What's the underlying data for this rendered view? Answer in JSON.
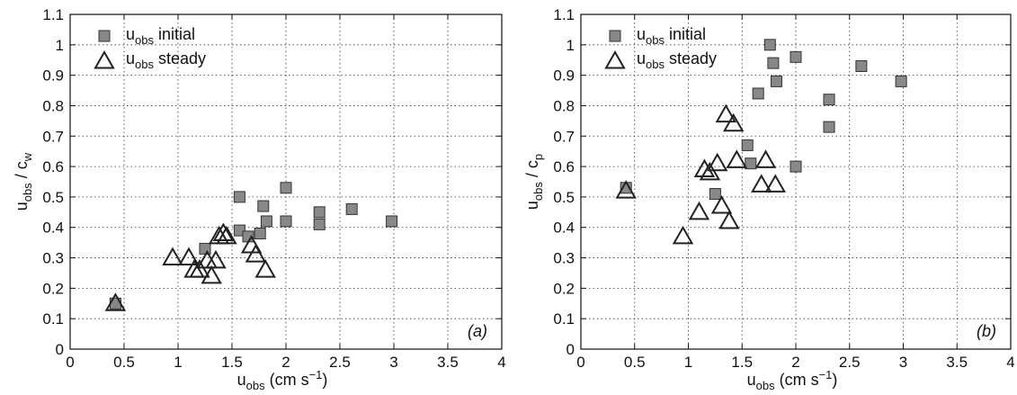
{
  "chart_data": [
    {
      "type": "scatter",
      "panel_label": "(a)",
      "xlabel": {
        "main": "u",
        "sub": "obs",
        "unit": " (cm s",
        "unit_exp": "−1",
        "close": ")"
      },
      "ylabel": {
        "num": "u",
        "num_sub": "obs",
        "sep": " / ",
        "den": "c",
        "den_sub": "w"
      },
      "xlim": [
        0,
        4
      ],
      "ylim": [
        0,
        1.1
      ],
      "xticks": [
        "0",
        "0.5",
        "1",
        "1.5",
        "2",
        "2.5",
        "3",
        "3.5",
        "4"
      ],
      "yticks": [
        "0",
        "0.1",
        "0.2",
        "0.3",
        "0.4",
        "0.5",
        "0.6",
        "0.7",
        "0.8",
        "0.9",
        "1",
        "1.1"
      ],
      "grid": true,
      "legend_position": "top-left",
      "series": [
        {
          "name": "u obs initial",
          "label": {
            "main": "u",
            "sub": "obs",
            "rest": " initial"
          },
          "marker": "square",
          "color": "#888888",
          "points": [
            [
              0.42,
              0.15
            ],
            [
              1.25,
              0.33
            ],
            [
              1.57,
              0.5
            ],
            [
              1.57,
              0.39
            ],
            [
              1.65,
              0.37
            ],
            [
              1.76,
              0.38
            ],
            [
              1.79,
              0.47
            ],
            [
              1.82,
              0.42
            ],
            [
              2.0,
              0.53
            ],
            [
              2.0,
              0.42
            ],
            [
              2.31,
              0.45
            ],
            [
              2.31,
              0.41
            ],
            [
              2.61,
              0.46
            ],
            [
              2.98,
              0.42
            ]
          ]
        },
        {
          "name": "u obs steady",
          "label": {
            "main": "u",
            "sub": "obs",
            "rest": " steady"
          },
          "marker": "triangle",
          "color": "#222222",
          "points": [
            [
              0.42,
              0.15
            ],
            [
              0.95,
              0.3
            ],
            [
              1.1,
              0.3
            ],
            [
              1.15,
              0.26
            ],
            [
              1.2,
              0.26
            ],
            [
              1.27,
              0.29
            ],
            [
              1.31,
              0.24
            ],
            [
              1.35,
              0.29
            ],
            [
              1.38,
              0.37
            ],
            [
              1.42,
              0.38
            ],
            [
              1.45,
              0.37
            ],
            [
              1.68,
              0.34
            ],
            [
              1.72,
              0.31
            ],
            [
              1.81,
              0.26
            ]
          ]
        }
      ]
    },
    {
      "type": "scatter",
      "panel_label": "(b)",
      "xlabel": {
        "main": "u",
        "sub": "obs",
        "unit": " (cm s",
        "unit_exp": "−1",
        "close": ")"
      },
      "ylabel": {
        "num": "u",
        "num_sub": "obs",
        "sep": " / ",
        "den": "c",
        "den_sub": "p"
      },
      "xlim": [
        0,
        4
      ],
      "ylim": [
        0,
        1.1
      ],
      "xticks": [
        "0",
        "0.5",
        "1",
        "1.5",
        "2",
        "2.5",
        "3",
        "3.5",
        "4"
      ],
      "yticks": [
        "0",
        "0.1",
        "0.2",
        "0.3",
        "0.4",
        "0.5",
        "0.6",
        "0.7",
        "0.8",
        "0.9",
        "1",
        "1.1"
      ],
      "grid": true,
      "legend_position": "top-left",
      "series": [
        {
          "name": "u obs initial",
          "label": {
            "main": "u",
            "sub": "obs",
            "rest": " initial"
          },
          "marker": "square",
          "color": "#888888",
          "points": [
            [
              0.42,
              0.53
            ],
            [
              1.25,
              0.51
            ],
            [
              1.55,
              0.67
            ],
            [
              1.58,
              0.61
            ],
            [
              1.65,
              0.84
            ],
            [
              1.76,
              1.0
            ],
            [
              1.79,
              0.94
            ],
            [
              1.82,
              0.88
            ],
            [
              2.0,
              0.96
            ],
            [
              2.0,
              0.6
            ],
            [
              2.31,
              0.82
            ],
            [
              2.31,
              0.73
            ],
            [
              2.61,
              0.93
            ],
            [
              2.98,
              0.88
            ]
          ]
        },
        {
          "name": "u obs steady",
          "label": {
            "main": "u",
            "sub": "obs",
            "rest": " steady"
          },
          "marker": "triangle",
          "color": "#222222",
          "points": [
            [
              0.42,
              0.52
            ],
            [
              0.95,
              0.37
            ],
            [
              1.1,
              0.45
            ],
            [
              1.15,
              0.59
            ],
            [
              1.2,
              0.58
            ],
            [
              1.27,
              0.61
            ],
            [
              1.31,
              0.47
            ],
            [
              1.35,
              0.77
            ],
            [
              1.38,
              0.42
            ],
            [
              1.42,
              0.74
            ],
            [
              1.45,
              0.62
            ],
            [
              1.68,
              0.54
            ],
            [
              1.72,
              0.62
            ],
            [
              1.81,
              0.54
            ]
          ]
        }
      ]
    }
  ]
}
